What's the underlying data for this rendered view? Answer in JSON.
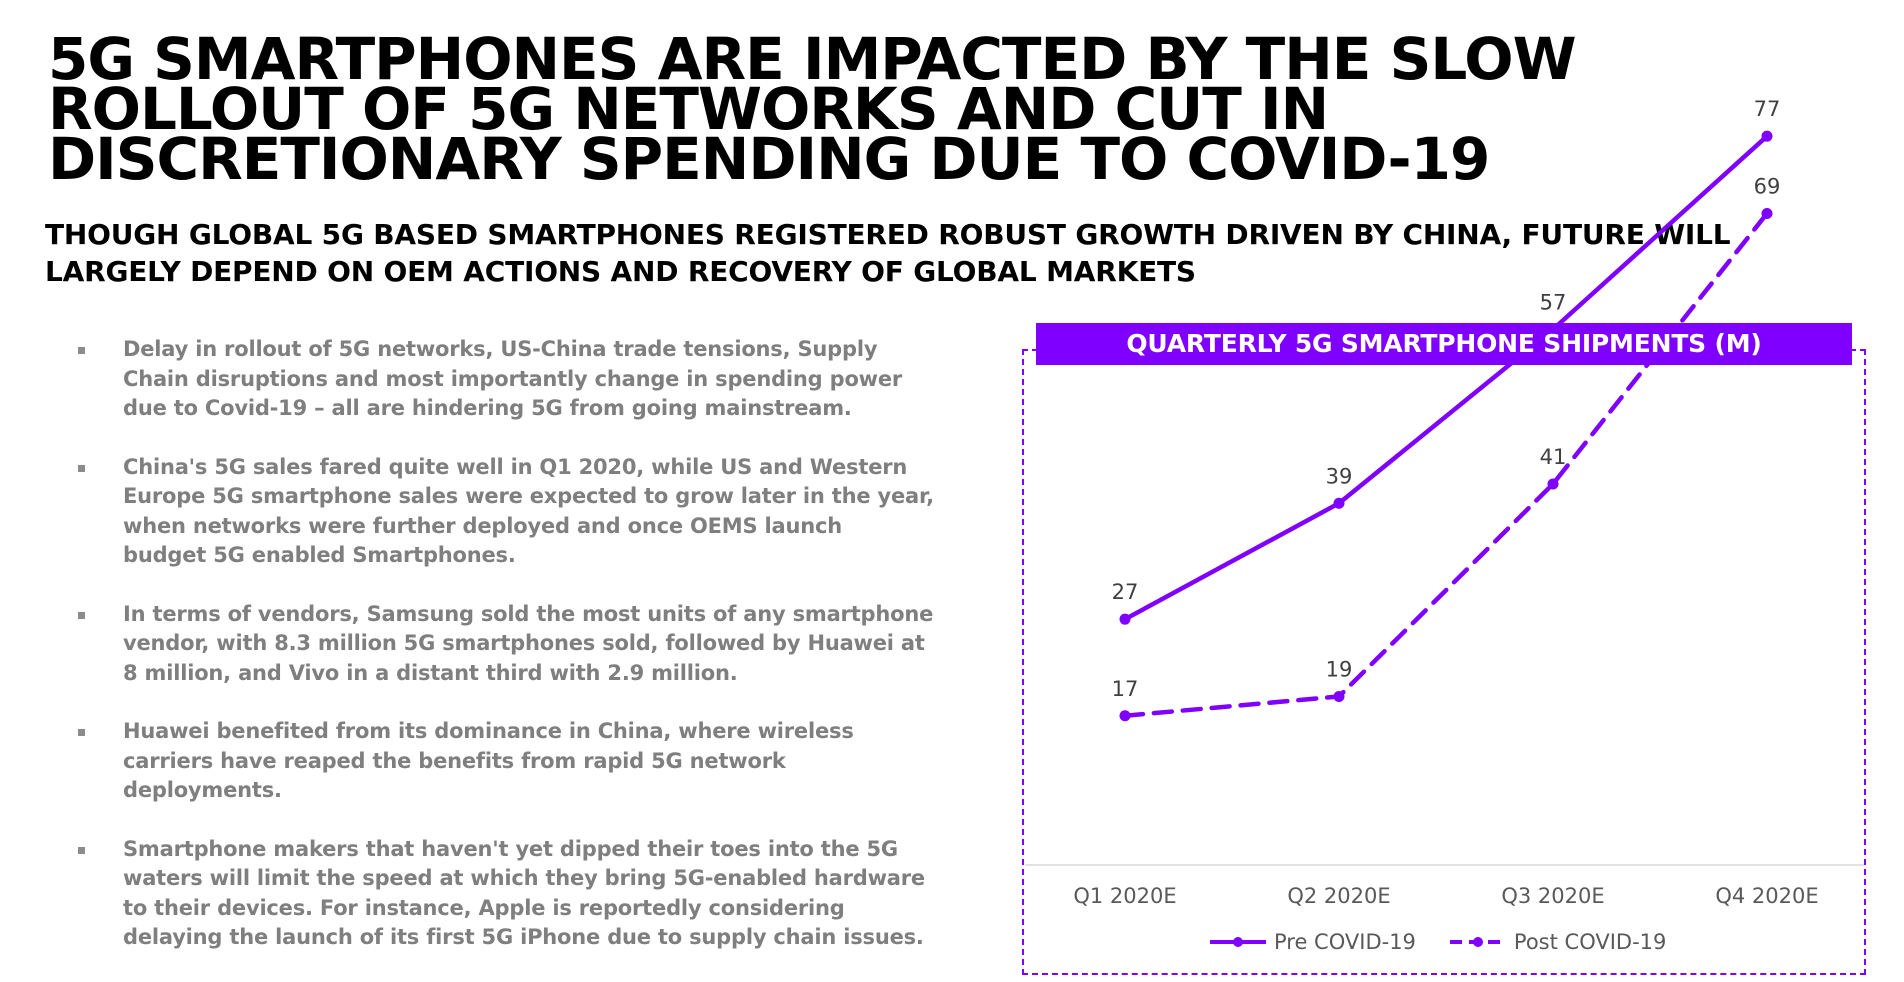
{
  "header": {
    "title": "5G SMARTPHONES ARE IMPACTED BY THE SLOW\nROLLOUT OF 5G NETWORKS AND CUT IN\nDISCRETIONARY SPENDING DUE TO COVID-19",
    "subtitle": "THOUGH GLOBAL 5G BASED SMARTPHONES REGISTERED ROBUST GROWTH DRIVEN BY CHINA, FUTURE WILL\nLARGELY DEPEND ON OEM ACTIONS AND RECOVERY OF GLOBAL MARKETS"
  },
  "bullets": [
    "Delay in rollout of 5G networks, US-China trade tensions, Supply\nChain disruptions and most importantly change in spending power\ndue to Covid-19 – all are hindering 5G from going mainstream.",
    "China's 5G sales fared quite well in Q1 2020, while US and Western\nEurope 5G smartphone sales were expected to grow later in the year,\nwhen networks were further deployed and once OEMS launch\nbudget 5G enabled Smartphones.",
    "In terms of vendors, Samsung sold the most units of any smartphone\nvendor, with 8.3 million 5G smartphones sold, followed by Huawei at\n8 million, and Vivo in a distant third with 2.9 million.",
    "Huawei benefited from its dominance in China, where wireless\ncarriers have reaped the benefits from rapid 5G network\ndeployments.",
    "Smartphone makers that haven't yet dipped their toes into the 5G\nwaters will limit the speed at which they bring 5G-enabled hardware\nto their devices. For instance, Apple is reportedly considering\ndelaying the launch of its first 5G iPhone due to supply chain issues."
  ],
  "colors": {
    "accent": "#8000ff",
    "bullet_text": "#7f7f7f",
    "axis_text": "#595959"
  },
  "chart_data": {
    "type": "line",
    "title": "QUARTERLY 5G SMARTPHONE SHIPMENTS (M)",
    "categories": [
      "Q1 2020E",
      "Q2 2020E",
      "Q3 2020E",
      "Q4 2020E"
    ],
    "series": [
      {
        "name": "Pre COVID-19",
        "values": [
          27,
          39,
          57,
          77
        ],
        "style": "solid"
      },
      {
        "name": "Post COVID-19",
        "values": [
          17,
          19,
          41,
          69
        ],
        "style": "dashed"
      }
    ],
    "ylim": [
      0,
      85
    ],
    "grid": false,
    "data_labels": true,
    "legend_position": "bottom"
  }
}
